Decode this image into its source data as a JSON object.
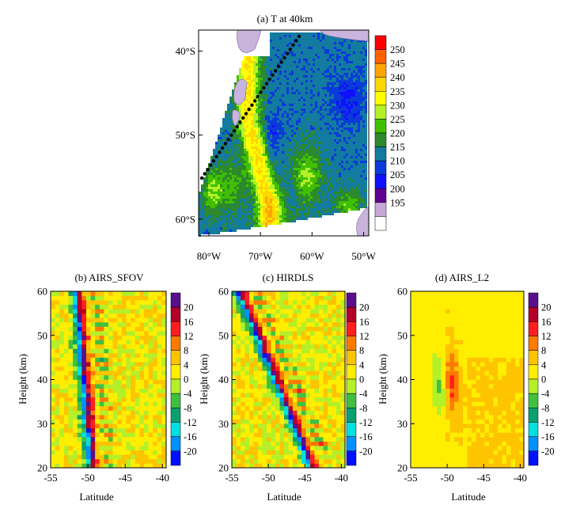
{
  "chart_data": [
    {
      "type": "heatmap",
      "title": "(a) T at 40km",
      "x_ticks": [
        "80°W",
        "70°W",
        "60°W",
        "50°W"
      ],
      "x_tick_values": [
        -80,
        -70,
        -60,
        -50
      ],
      "y_ticks": [
        "40°S",
        "50°S",
        "60°S"
      ],
      "y_tick_values": [
        -40,
        -50,
        -60
      ],
      "xlim": [
        -82,
        -49
      ],
      "ylim": [
        -62,
        -37.5
      ],
      "colorbar_levels": [
        "250",
        "245",
        "240",
        "235",
        "230",
        "225",
        "220",
        "215",
        "210",
        "205",
        "200",
        "195"
      ],
      "colorbar_colors": [
        "#ff0000",
        "#ff6000",
        "#ffa500",
        "#ffd700",
        "#ffff00",
        "#b4f028",
        "#40c000",
        "#2c8a2c",
        "#137aa0",
        "#0a3ad8",
        "#1010ff",
        "#600090",
        "#c8a8d8",
        "#ffffff"
      ],
      "land_color": "#c8b4dc",
      "track_color": "#000000",
      "features": {
        "warm_band_center": [
          [
            -72.5,
            -48
          ],
          [
            -70.5,
            -53
          ],
          [
            -68.5,
            -58
          ]
        ],
        "cold_background_value": 212,
        "warm_band_peak": 236
      }
    },
    {
      "type": "heatmap",
      "title": "(b) AIRS_SFOV",
      "xlabel": "Latitude",
      "ylabel": "Height (km)",
      "x_ticks": [
        "-55",
        "-50",
        "-45",
        "-40"
      ],
      "x_tick_values": [
        -55,
        -50,
        -45,
        -40
      ],
      "y_ticks": [
        "20",
        "30",
        "40",
        "50",
        "60"
      ],
      "y_tick_values": [
        20,
        30,
        40,
        50,
        60
      ],
      "xlim": [
        -55,
        -39.5
      ],
      "ylim": [
        20,
        60
      ],
      "colorbar_levels": [
        "20",
        "16",
        "12",
        "8",
        "4",
        "0",
        "-4",
        "-8",
        "-12",
        "-16",
        "-20"
      ],
      "colorbar_colors": [
        "#5a0f8c",
        "#b40028",
        "#ff1e1e",
        "#ff7a00",
        "#ffc400",
        "#ffee00",
        "#b4f028",
        "#40c040",
        "#0aa070",
        "#00e0e0",
        "#0090ff",
        "#0010ff"
      ],
      "features": {
        "band_lat_at_20km": -49.5,
        "band_lat_at_60km": -51.5,
        "amplitude": 20
      }
    },
    {
      "type": "heatmap",
      "title": "(c) HIRDLS",
      "xlabel": "Latitude",
      "ylabel": "Height (km)",
      "x_ticks": [
        "-55",
        "-50",
        "-45",
        "-40"
      ],
      "x_tick_values": [
        -55,
        -50,
        -45,
        -40
      ],
      "y_ticks": [
        "20",
        "30",
        "40",
        "50",
        "60"
      ],
      "y_tick_values": [
        20,
        30,
        40,
        50,
        60
      ],
      "xlim": [
        -55,
        -39.5
      ],
      "ylim": [
        20,
        60
      ],
      "colorbar_levels": [
        "20",
        "16",
        "12",
        "8",
        "4",
        "0",
        "-4",
        "-8",
        "-12",
        "-16",
        "-20"
      ],
      "colorbar_colors": [
        "#5a0f8c",
        "#b40028",
        "#ff1e1e",
        "#ff7a00",
        "#ffc400",
        "#ffee00",
        "#b4f028",
        "#40c040",
        "#0aa070",
        "#00e0e0",
        "#0090ff",
        "#0010ff"
      ],
      "features": {
        "band_lat_at_20km": -44,
        "band_lat_at_60km": -54,
        "amplitude": 20
      }
    },
    {
      "type": "heatmap",
      "title": "(d) AIRS_L2",
      "xlabel": "Latitude",
      "ylabel": "Height (km)",
      "x_ticks": [
        "-55",
        "-50",
        "-45",
        "-40"
      ],
      "x_tick_values": [
        -55,
        -50,
        -45,
        -40
      ],
      "y_ticks": [
        "20",
        "30",
        "40",
        "50",
        "60"
      ],
      "y_tick_values": [
        20,
        30,
        40,
        50,
        60
      ],
      "xlim": [
        -55,
        -39.5
      ],
      "ylim": [
        20,
        60
      ],
      "colorbar_levels": [
        "20",
        "16",
        "12",
        "8",
        "4",
        "0",
        "-4",
        "-8",
        "-12",
        "-16",
        "-20"
      ],
      "colorbar_colors": [
        "#5a0f8c",
        "#b40028",
        "#ff1e1e",
        "#ff7a00",
        "#ffc400",
        "#ffee00",
        "#b4f028",
        "#40c040",
        "#0aa070",
        "#00e0e0",
        "#0090ff",
        "#0010ff"
      ],
      "features": {
        "band_lat_at_20km": -49,
        "band_lat_at_60km": -50,
        "amplitude": 11
      }
    }
  ]
}
